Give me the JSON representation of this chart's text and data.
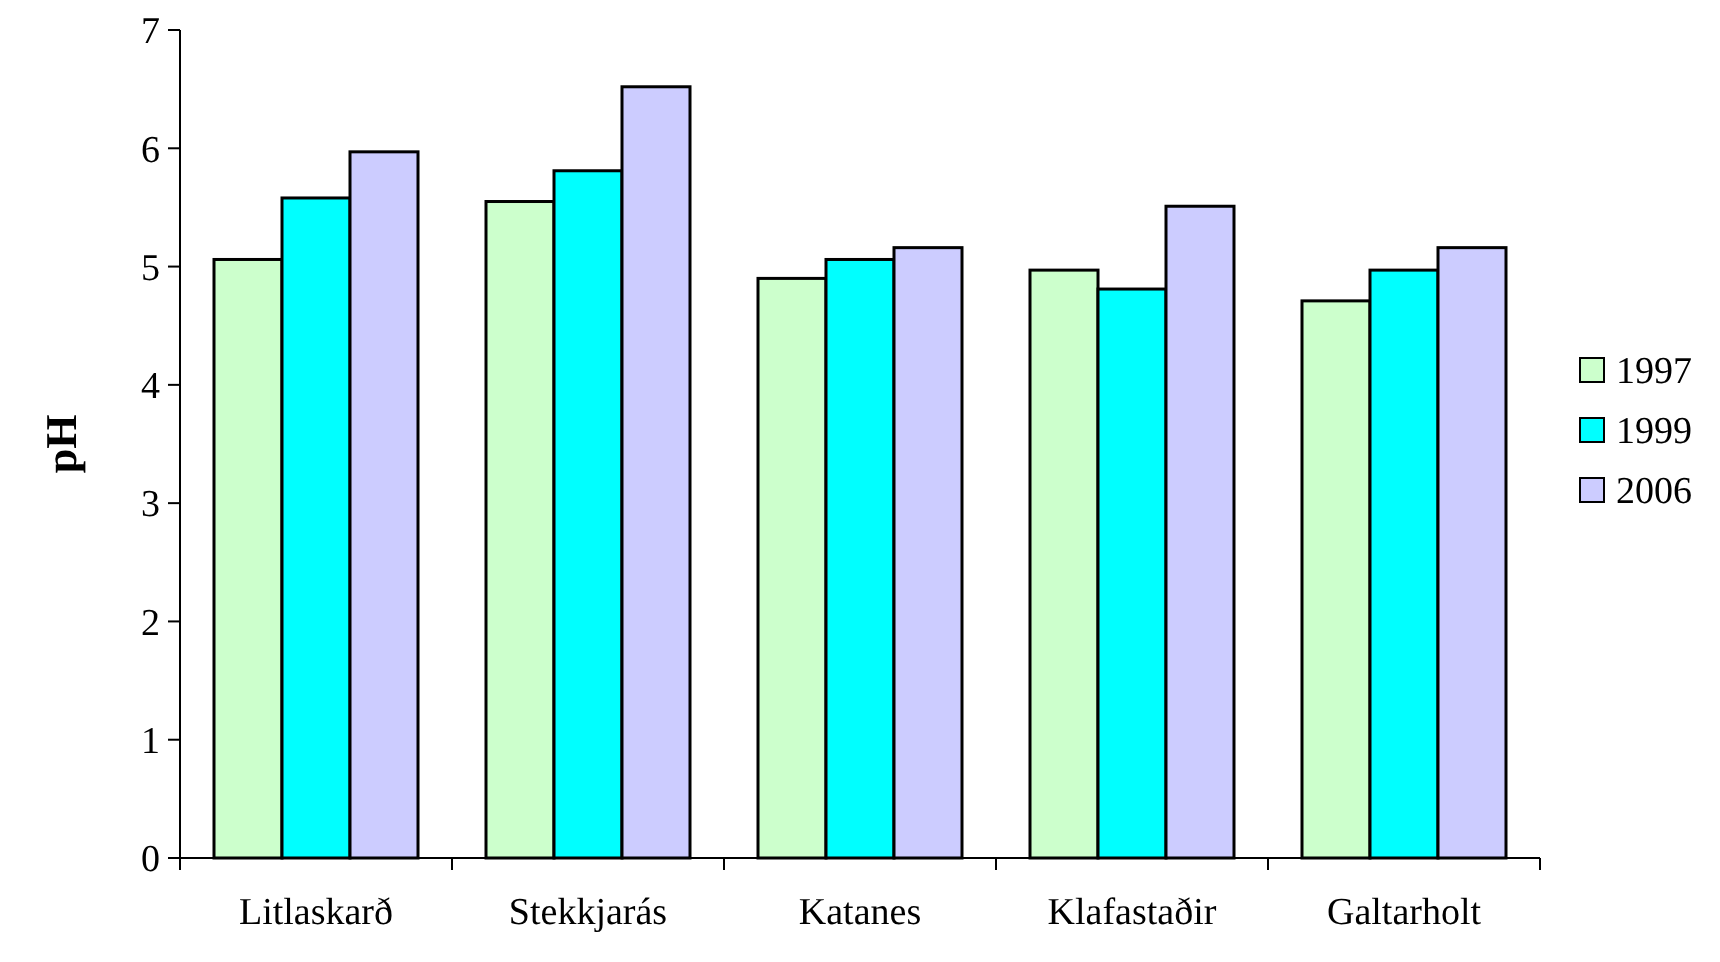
{
  "chart_data": {
    "type": "bar",
    "ylabel": "pH",
    "categories": [
      "Litlaskarð",
      "Stekkjarás",
      "Katanes",
      "Klafastaðir",
      "Galtarholt"
    ],
    "series": [
      {
        "name": "1997",
        "color": "#ccffcc",
        "values": [
          5.06,
          5.55,
          4.9,
          4.97,
          4.71
        ]
      },
      {
        "name": "1999",
        "color": "#00ffff",
        "values": [
          5.58,
          5.81,
          5.06,
          4.81,
          4.97
        ]
      },
      {
        "name": "2006",
        "color": "#ccccff",
        "values": [
          5.97,
          6.52,
          5.16,
          5.51,
          5.16
        ]
      }
    ],
    "ylim": [
      0,
      7
    ],
    "yticks": [
      0,
      1,
      2,
      3,
      4,
      5,
      6,
      7
    ],
    "grid": false,
    "legend": "right"
  }
}
